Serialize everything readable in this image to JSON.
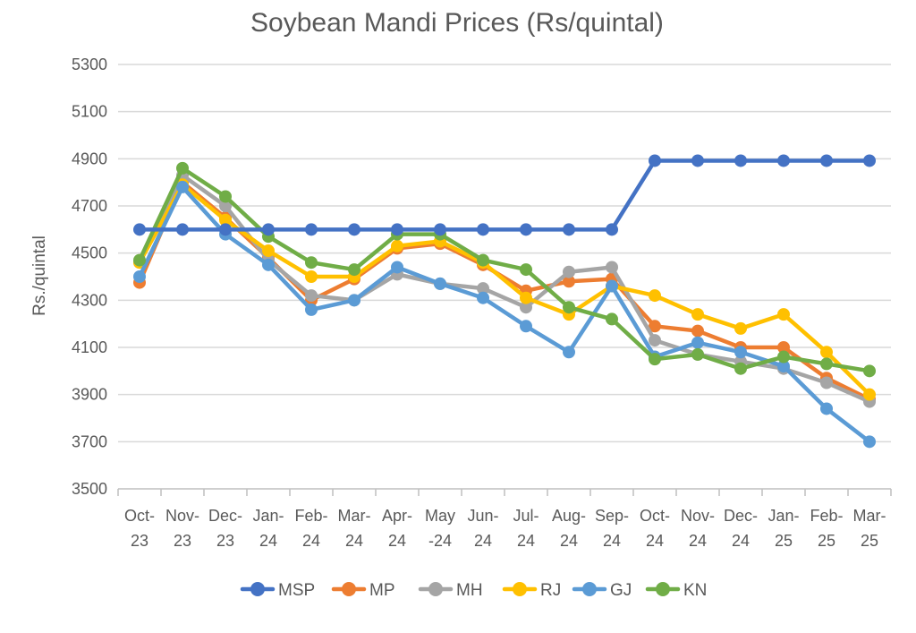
{
  "chart_data": {
    "type": "line",
    "title": "Soybean Mandi Prices (Rs/quintal)",
    "xlabel": "",
    "ylabel": "Rs./quintal",
    "ylim": [
      3500,
      5300
    ],
    "yticks": [
      3500,
      3700,
      3900,
      4100,
      4300,
      4500,
      4700,
      4900,
      5100,
      5300
    ],
    "grid": true,
    "legend_position": "bottom",
    "categories": [
      [
        "Oct-",
        "23"
      ],
      [
        "Nov-",
        "23"
      ],
      [
        "Dec-",
        "23"
      ],
      [
        "Jan-",
        "24"
      ],
      [
        "Feb-",
        "24"
      ],
      [
        "Mar-",
        "24"
      ],
      [
        "Apr-",
        "24"
      ],
      [
        "May",
        "-24"
      ],
      [
        "Jun-",
        "24"
      ],
      [
        "Jul-",
        "24"
      ],
      [
        "Aug-",
        "24"
      ],
      [
        "Sep-",
        "24"
      ],
      [
        "Oct-",
        "24"
      ],
      [
        "Nov-",
        "24"
      ],
      [
        "Dec-",
        "24"
      ],
      [
        "Jan-",
        "25"
      ],
      [
        "Feb-",
        "25"
      ],
      [
        "Mar-",
        "25"
      ]
    ],
    "series": [
      {
        "name": "MP",
        "color": "#ED7D31",
        "values": [
          4375,
          4800,
          4650,
          4480,
          4300,
          4390,
          4520,
          4540,
          4450,
          4340,
          4380,
          4390,
          4190,
          4170,
          4100,
          4100,
          3970,
          3880
        ]
      },
      {
        "name": "MH",
        "color": "#A5A5A5",
        "values": [
          4460,
          4830,
          4700,
          4470,
          4320,
          4300,
          4410,
          4370,
          4350,
          4270,
          4420,
          4440,
          4130,
          4070,
          4040,
          4010,
          3950,
          3870
        ]
      },
      {
        "name": "RJ",
        "color": "#FFC000",
        "values": [
          4460,
          4790,
          4640,
          4510,
          4400,
          4400,
          4530,
          4550,
          4460,
          4310,
          4240,
          4360,
          4320,
          4240,
          4180,
          4240,
          4080,
          3900
        ]
      },
      {
        "name": "GJ",
        "color": "#5B9BD5",
        "values": [
          4400,
          4780,
          4580,
          4450,
          4260,
          4300,
          4440,
          4370,
          4310,
          4190,
          4080,
          4360,
          4060,
          4120,
          4080,
          4020,
          3840,
          3700
        ]
      },
      {
        "name": "KN",
        "color": "#70AD47",
        "values": [
          4470,
          4860,
          4740,
          4570,
          4460,
          4430,
          4580,
          4580,
          4470,
          4430,
          4270,
          4220,
          4050,
          4070,
          4010,
          4060,
          4030,
          4000
        ]
      },
      {
        "name": "MSP",
        "color": "#4472C4",
        "values": [
          4600,
          4600,
          4600,
          4600,
          4600,
          4600,
          4600,
          4600,
          4600,
          4600,
          4600,
          4600,
          4892,
          4892,
          4892,
          4892,
          4892,
          4892
        ]
      }
    ],
    "legend_order": [
      "MSP",
      "MP",
      "MH",
      "RJ",
      "GJ",
      "KN"
    ]
  }
}
